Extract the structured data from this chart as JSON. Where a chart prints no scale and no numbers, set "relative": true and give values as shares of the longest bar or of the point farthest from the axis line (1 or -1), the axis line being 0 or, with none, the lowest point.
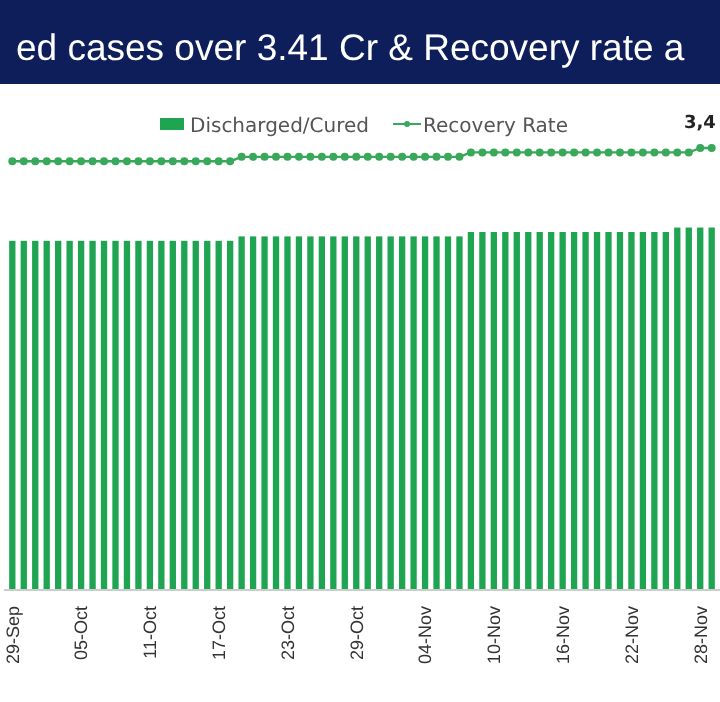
{
  "chart_data": {
    "type": "bar",
    "title": "ed cases over 3.41 Cr & Recovery rate a",
    "relative": true,
    "legend": "top",
    "annotations": [
      "3,4"
    ],
    "categories": [
      "29-Sep",
      null,
      null,
      null,
      null,
      null,
      "05-Oct",
      null,
      null,
      null,
      null,
      null,
      "11-Oct",
      null,
      null,
      null,
      null,
      null,
      "17-Oct",
      null,
      null,
      null,
      null,
      null,
      "23-Oct",
      null,
      null,
      null,
      null,
      null,
      "29-Oct",
      null,
      null,
      null,
      null,
      null,
      "04-Nov",
      null,
      null,
      null,
      null,
      null,
      "10-Nov",
      null,
      null,
      null,
      null,
      null,
      "16-Nov",
      null,
      null,
      null,
      null,
      null,
      "22-Nov",
      null,
      null,
      null,
      null,
      null,
      "28-Nov",
      null
    ],
    "series": [
      {
        "name": "Discharged/Cured",
        "color": "#1fa552",
        "values": [
          0.79,
          0.79,
          0.79,
          0.79,
          0.79,
          0.79,
          0.79,
          0.79,
          0.79,
          0.79,
          0.79,
          0.79,
          0.79,
          0.79,
          0.79,
          0.79,
          0.79,
          0.79,
          0.79,
          0.79,
          0.8,
          0.8,
          0.8,
          0.8,
          0.8,
          0.8,
          0.8,
          0.8,
          0.8,
          0.8,
          0.8,
          0.8,
          0.8,
          0.8,
          0.8,
          0.8,
          0.8,
          0.8,
          0.8,
          0.8,
          0.81,
          0.81,
          0.81,
          0.81,
          0.81,
          0.81,
          0.81,
          0.81,
          0.81,
          0.81,
          0.81,
          0.81,
          0.81,
          0.81,
          0.81,
          0.81,
          0.81,
          0.81,
          0.82,
          0.82,
          0.82,
          0.82
        ]
      },
      {
        "name": "Recovery Rate",
        "type": "line",
        "color": "#3aa85a",
        "marker": "circle",
        "values": [
          0.97,
          0.97,
          0.97,
          0.97,
          0.97,
          0.97,
          0.97,
          0.97,
          0.97,
          0.97,
          0.97,
          0.97,
          0.97,
          0.97,
          0.97,
          0.97,
          0.97,
          0.97,
          0.97,
          0.97,
          0.98,
          0.98,
          0.98,
          0.98,
          0.98,
          0.98,
          0.98,
          0.98,
          0.98,
          0.98,
          0.98,
          0.98,
          0.98,
          0.98,
          0.98,
          0.98,
          0.98,
          0.98,
          0.98,
          0.98,
          0.99,
          0.99,
          0.99,
          0.99,
          0.99,
          0.99,
          0.99,
          0.99,
          0.99,
          0.99,
          0.99,
          0.99,
          0.99,
          0.99,
          0.99,
          0.99,
          0.99,
          0.99,
          0.99,
          0.99,
          1,
          1
        ]
      }
    ]
  }
}
